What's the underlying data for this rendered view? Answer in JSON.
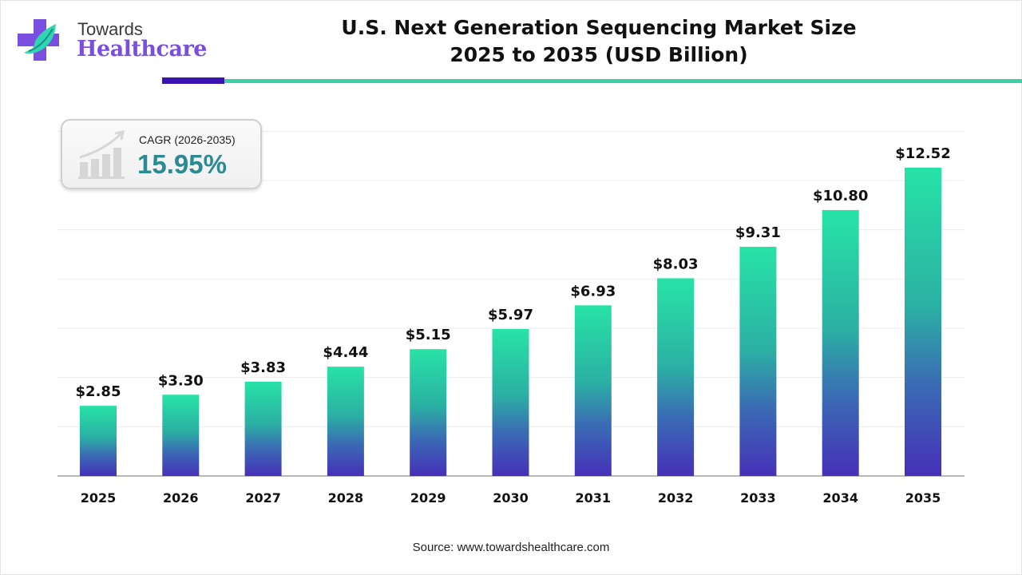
{
  "logo": {
    "line1": "Towards",
    "line2": "Healthcare"
  },
  "title": {
    "line1": "U.S. Next Generation Sequencing Market Size",
    "line2": "2025 to 2035 (USD Billion)"
  },
  "cagr": {
    "label": "CAGR (2026-2035)",
    "value": "15.95%",
    "icon": "growth-chart-icon"
  },
  "source": "Source: www.towardshealthcare.com",
  "colors": {
    "bar_top": "#27e3a6",
    "bar_bottom": "#4630b8",
    "accent_dark": "#3a14b0",
    "accent_teal": "#3ecfa8",
    "cagr_value": "#2c8a92"
  },
  "chart_data": {
    "type": "bar",
    "categories": [
      "2025",
      "2026",
      "2027",
      "2028",
      "2029",
      "2030",
      "2031",
      "2032",
      "2033",
      "2034",
      "2035"
    ],
    "values": [
      2.85,
      3.3,
      3.83,
      4.44,
      5.15,
      5.97,
      6.93,
      8.03,
      9.31,
      10.8,
      12.52
    ],
    "labels": [
      "$2.85",
      "$3.30",
      "$3.83",
      "$4.44",
      "$5.15",
      "$5.97",
      "$6.93",
      "$8.03",
      "$9.31",
      "$10.80",
      "$12.52"
    ],
    "ylim": [
      0,
      14
    ],
    "grid": true,
    "xlabel": "",
    "ylabel": ""
  }
}
